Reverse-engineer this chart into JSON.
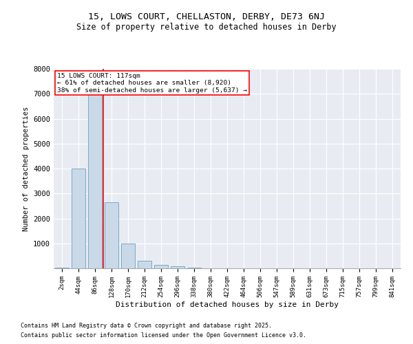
{
  "title1": "15, LOWS COURT, CHELLASTON, DERBY, DE73 6NJ",
  "title2": "Size of property relative to detached houses in Derby",
  "xlabel": "Distribution of detached houses by size in Derby",
  "ylabel": "Number of detached properties",
  "categories": [
    "2sqm",
    "44sqm",
    "86sqm",
    "128sqm",
    "170sqm",
    "212sqm",
    "254sqm",
    "296sqm",
    "338sqm",
    "380sqm",
    "422sqm",
    "464sqm",
    "506sqm",
    "547sqm",
    "589sqm",
    "631sqm",
    "673sqm",
    "715sqm",
    "757sqm",
    "799sqm",
    "841sqm"
  ],
  "values": [
    30,
    4000,
    7300,
    2650,
    1000,
    300,
    130,
    90,
    30,
    10,
    10,
    5,
    5,
    5,
    5,
    5,
    5,
    5,
    5,
    5,
    5
  ],
  "bar_color": "#c9d9e8",
  "bar_edge_color": "#7aaac8",
  "vline_color": "red",
  "annotation_title": "15 LOWS COURT: 117sqm",
  "annotation_line1": "← 61% of detached houses are smaller (8,920)",
  "annotation_line2": "38% of semi-detached houses are larger (5,637) →",
  "ylim": [
    0,
    8000
  ],
  "yticks": [
    0,
    1000,
    2000,
    3000,
    4000,
    5000,
    6000,
    7000,
    8000
  ],
  "bg_color": "#e8ecf2",
  "footnote1": "Contains HM Land Registry data © Crown copyright and database right 2025.",
  "footnote2": "Contains public sector information licensed under the Open Government Licence v3.0."
}
